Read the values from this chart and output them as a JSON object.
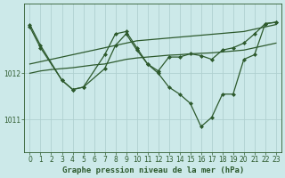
{
  "background_color": "#cce9e9",
  "grid_color": "#b0d0d0",
  "line_color": "#2d5a2d",
  "marker_color": "#2d5a2d",
  "xlabel": "Graphe pression niveau de la mer (hPa)",
  "xlabel_fontsize": 6.5,
  "tick_fontsize": 5.5,
  "xlim": [
    -0.5,
    23.5
  ],
  "ylim": [
    1010.3,
    1013.5
  ],
  "yticks": [
    1011,
    1012
  ],
  "xticks": [
    0,
    1,
    2,
    3,
    4,
    5,
    6,
    7,
    8,
    9,
    10,
    11,
    12,
    13,
    14,
    15,
    16,
    17,
    18,
    19,
    20,
    21,
    22,
    23
  ],
  "series": [
    {
      "x": [
        0,
        1,
        2,
        3,
        4,
        5,
        6,
        7,
        8,
        9,
        10,
        11,
        12,
        13,
        14,
        15,
        16,
        17,
        18,
        19,
        20,
        21,
        22,
        23
      ],
      "y": [
        1012.2,
        1012.25,
        1012.3,
        1012.35,
        1012.4,
        1012.45,
        1012.5,
        1012.55,
        1012.6,
        1012.65,
        1012.7,
        1012.72,
        1012.74,
        1012.76,
        1012.78,
        1012.8,
        1012.82,
        1012.84,
        1012.86,
        1012.88,
        1012.9,
        1012.95,
        1013.0,
        1013.05
      ],
      "has_markers": false,
      "linewidth": 0.9
    },
    {
      "x": [
        0,
        1,
        2,
        3,
        4,
        5,
        6,
        7,
        8,
        9,
        10,
        11,
        12,
        13,
        14,
        15,
        16,
        17,
        18,
        19,
        20,
        21,
        22,
        23
      ],
      "y": [
        1012.0,
        1012.05,
        1012.08,
        1012.1,
        1012.12,
        1012.15,
        1012.18,
        1012.2,
        1012.25,
        1012.3,
        1012.33,
        1012.35,
        1012.37,
        1012.39,
        1012.4,
        1012.42,
        1012.43,
        1012.44,
        1012.46,
        1012.48,
        1012.5,
        1012.55,
        1012.6,
        1012.65
      ],
      "has_markers": false,
      "linewidth": 0.9
    },
    {
      "x": [
        0,
        1,
        3,
        4,
        5,
        7,
        8,
        9,
        10,
        11,
        12,
        13,
        14,
        15,
        16,
        17,
        18,
        19,
        20,
        21,
        22,
        23
      ],
      "y": [
        1013.0,
        1012.55,
        1011.85,
        1011.65,
        1011.7,
        1012.4,
        1012.85,
        1012.9,
        1012.55,
        1012.2,
        1012.05,
        1012.35,
        1012.35,
        1012.42,
        1012.38,
        1012.3,
        1012.5,
        1012.55,
        1012.65,
        1012.85,
        1013.07,
        1013.1
      ],
      "has_markers": true,
      "linewidth": 0.9
    },
    {
      "x": [
        0,
        1,
        3,
        4,
        5,
        7,
        8,
        9,
        10,
        11,
        12,
        13,
        14,
        15,
        16,
        17,
        18,
        19,
        20,
        21,
        22,
        23
      ],
      "y": [
        1013.05,
        1012.6,
        1011.85,
        1011.65,
        1011.7,
        1012.1,
        1012.6,
        1012.85,
        1012.5,
        1012.2,
        1012.0,
        1011.7,
        1011.55,
        1011.35,
        1010.85,
        1011.05,
        1011.55,
        1011.55,
        1012.3,
        1012.4,
        1013.07,
        1013.1
      ],
      "has_markers": true,
      "linewidth": 0.9
    }
  ]
}
